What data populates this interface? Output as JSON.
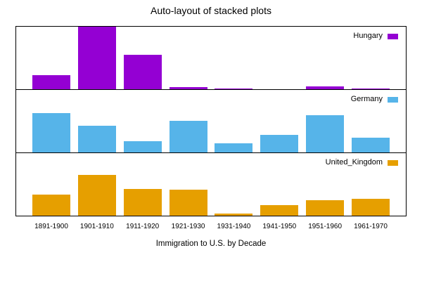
{
  "title": "Auto-layout of stacked plots",
  "xlabel": "Immigration to U.S. by Decade",
  "colors": {
    "background": "#ffffff",
    "panel_border": "#000000",
    "text": "#000000",
    "hungary": "#9400d3",
    "germany": "#56b4e9",
    "united_kingdom": "#e69f00"
  },
  "chart_data": {
    "type": "bar",
    "layout": "stacked-panels",
    "title": "Auto-layout of stacked plots",
    "xlabel": "Immigration to U.S. by Decade",
    "categories": [
      "1891-1900",
      "1901-1910",
      "1911-1920",
      "1921-1930",
      "1931-1940",
      "1941-1950",
      "1951-1960",
      "1961-1970"
    ],
    "ylim": [
      0,
      808511
    ],
    "y_axis_ticks": "none",
    "grid": false,
    "legend_position": "top-right-inside-each-panel",
    "series": [
      {
        "name": "Hungary",
        "color": "#9400d3",
        "values": [
          181288,
          808511,
          442693,
          30680,
          7861,
          3469,
          36637,
          5401
        ]
      },
      {
        "name": "Germany",
        "color": "#56b4e9",
        "values": [
          505152,
          341498,
          143945,
          412202,
          114058,
          226578,
          477765,
          190796
        ]
      },
      {
        "name": "United_Kingdom",
        "color": "#e69f00",
        "values": [
          271538,
          525950,
          341408,
          339570,
          31572,
          139306,
          202824,
          213822
        ]
      }
    ]
  }
}
